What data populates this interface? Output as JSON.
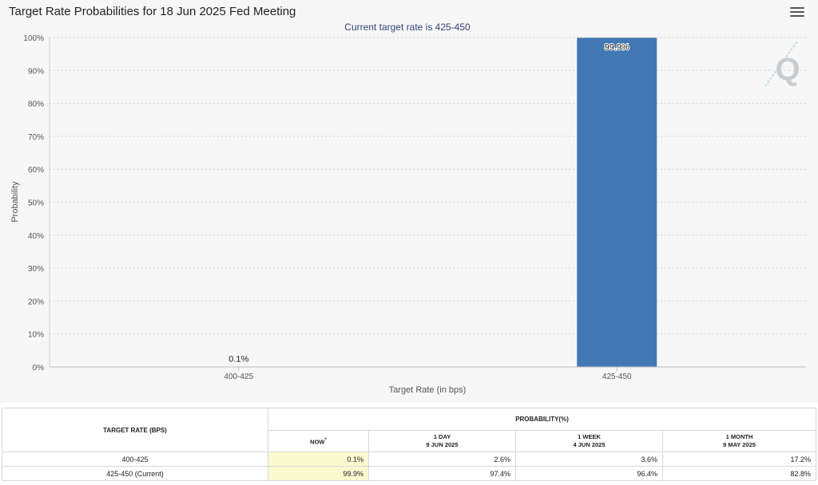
{
  "chart_title": "Target Rate Probabilities for 18 Jun 2025 Fed Meeting",
  "icons": {
    "menu": "hamburger-menu-icon",
    "watermark": "Q"
  },
  "chart_data": {
    "type": "bar",
    "subtitle": "Current target rate is 425-450",
    "categories": [
      "400-425",
      "425-450"
    ],
    "values": [
      0.1,
      99.9
    ],
    "data_labels": [
      "0.1%",
      "99.9%"
    ],
    "xlabel": "Target Rate (in bps)",
    "ylabel": "Probability",
    "ylim": [
      0,
      100
    ],
    "yticks": [
      "0%",
      "10%",
      "20%",
      "30%",
      "40%",
      "50%",
      "60%",
      "70%",
      "80%",
      "90%",
      "100%"
    ],
    "grid": true,
    "bar_color": "#4279b4"
  },
  "table": {
    "header_rate": "TARGET RATE (BPS)",
    "header_prob": "PROBABILITY(%)",
    "columns": [
      {
        "label": "NOW",
        "marker": "*",
        "sub": ""
      },
      {
        "label": "1 DAY",
        "sub": "9 JUN 2025"
      },
      {
        "label": "1 WEEK",
        "sub": "4 JUN 2025"
      },
      {
        "label": "1 MONTH",
        "sub": "9 MAY 2025"
      }
    ],
    "rows": [
      {
        "rate": "400-425",
        "now": "0.1%",
        "day": "2.6%",
        "week": "3.6%",
        "month": "17.2%"
      },
      {
        "rate": "425-450 (Current)",
        "now": "99.9%",
        "day": "97.4%",
        "week": "96.4%",
        "month": "82.8%"
      }
    ]
  }
}
